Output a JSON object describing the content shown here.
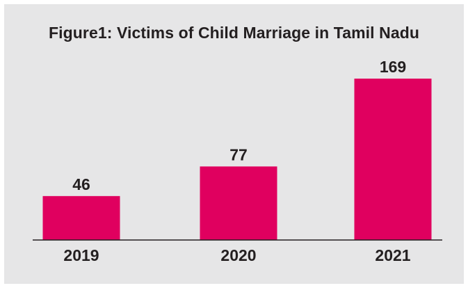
{
  "chart_data": {
    "type": "bar",
    "title": "Figure1: Victims of Child Marriage in Tamil Nadu",
    "categories": [
      "2019",
      "2020",
      "2021"
    ],
    "values": [
      46,
      77,
      169
    ],
    "xlabel": "",
    "ylabel": "",
    "ylim": [
      0,
      200
    ],
    "grid": false,
    "legend": "none",
    "bar_color": "#e0005f",
    "data_labels": [
      "46",
      "77",
      "169"
    ]
  }
}
